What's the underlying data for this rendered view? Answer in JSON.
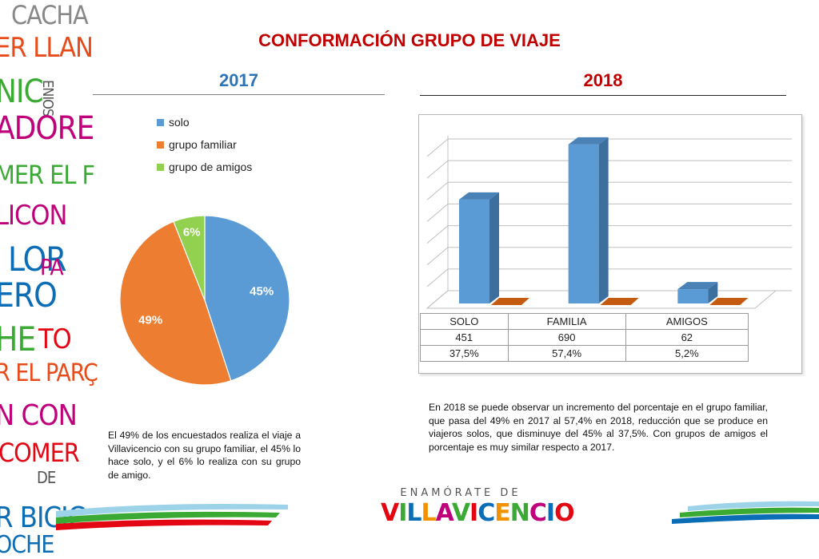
{
  "deco": {
    "words": [
      "CACHA",
      "ER LLAN",
      "NIC",
      "ENIOS",
      "ADORE",
      "MER EL F",
      "LICON",
      "LOR",
      "PA",
      "ERO",
      "HE",
      "TO",
      "R EL PARÇ",
      "N CON",
      "COMER",
      "DE",
      "R BICIC",
      "OCHE"
    ]
  },
  "title": "CONFORMACIÓN GRUPO DE VIAJE",
  "left": {
    "year": "2017",
    "note": "El 49% de los encuestados realiza el viaje a Villavicencio con su grupo familiar, el 45% lo hace solo, y el 6% lo realiza con su grupo de amigo."
  },
  "right": {
    "year": "2018",
    "note": "En 2018 se puede observar un incremento del porcentaje en el grupo familiar, que pasa del 49% en 2017 al 57,4% en 2018, reducción que se produce en viajeros solos, que disminuye del 45% al 37,5%. Con grupos de amigos el porcentaje es muy similar respecto a 2017."
  },
  "logo": {
    "top": "ENAMÓRATE DE",
    "main": "VILLAVICENCIO"
  },
  "chart_data": [
    {
      "type": "pie",
      "title": "",
      "categories": [
        "solo",
        "grupo familiar",
        "grupo de amigos"
      ],
      "values": [
        45,
        49,
        6
      ],
      "labels": [
        "45%",
        "49%",
        "6%"
      ],
      "colors": [
        "#5b9bd5",
        "#ed7d31",
        "#92d050"
      ],
      "legend_position": "top-left"
    },
    {
      "type": "bar",
      "title": "",
      "categories": [
        "SOLO",
        "FAMILIA",
        "AMIGOS"
      ],
      "series": [
        {
          "values": [
            451,
            690,
            62
          ],
          "color": "#5b9bd5"
        },
        {
          "values": [
            37.5,
            57.4,
            5.2
          ],
          "color": "#c55a11"
        }
      ],
      "table_rows": [
        [
          "451",
          "690",
          "62"
        ],
        [
          "37,5%",
          "57,4%",
          "5,2%"
        ]
      ],
      "ylim": [
        0,
        700
      ],
      "grid": true,
      "three_d": true
    }
  ]
}
